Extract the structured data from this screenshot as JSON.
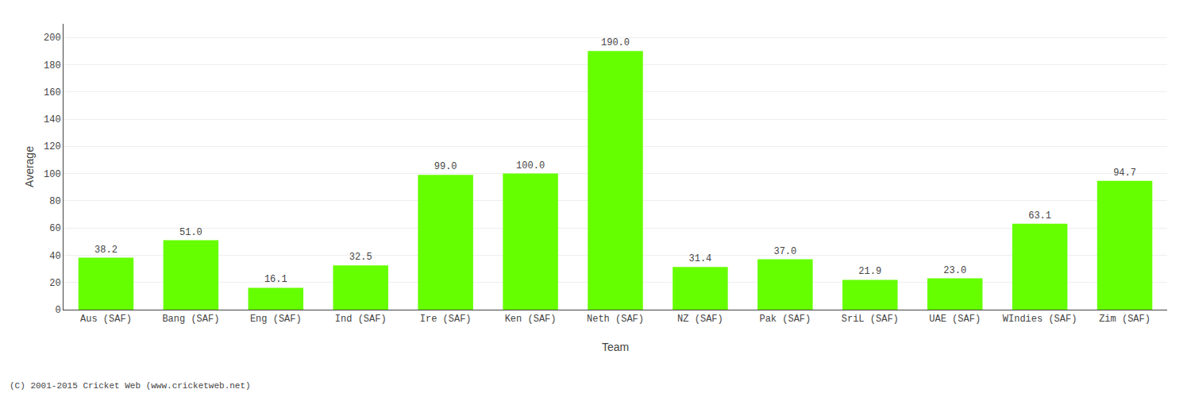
{
  "chart_data": {
    "type": "bar",
    "categories": [
      "Aus (SAF)",
      "Bang (SAF)",
      "Eng (SAF)",
      "Ind (SAF)",
      "Ire (SAF)",
      "Ken (SAF)",
      "Neth (SAF)",
      "NZ (SAF)",
      "Pak (SAF)",
      "SriL (SAF)",
      "UAE (SAF)",
      "WIndies (SAF)",
      "Zim (SAF)"
    ],
    "values": [
      38.2,
      51.0,
      16.1,
      32.5,
      99.0,
      100.0,
      190.0,
      31.4,
      37.0,
      21.9,
      23.0,
      63.1,
      94.7
    ],
    "value_labels": [
      "38.2",
      "51.0",
      "16.1",
      "32.5",
      "99.0",
      "100.0",
      "190.0",
      "31.4",
      "37.0",
      "21.9",
      "23.0",
      "63.1",
      "94.7"
    ],
    "data_labels": true,
    "color": "#66ff00",
    "xlabel": "Team",
    "ylabel": "Average",
    "ylim": [
      0,
      210
    ],
    "yticks": [
      0,
      20,
      40,
      60,
      80,
      100,
      120,
      140,
      160,
      180,
      200
    ],
    "grid": true,
    "annotations": [
      "(C) 2001-2015 Cricket Web (www.cricketweb.net)"
    ]
  }
}
